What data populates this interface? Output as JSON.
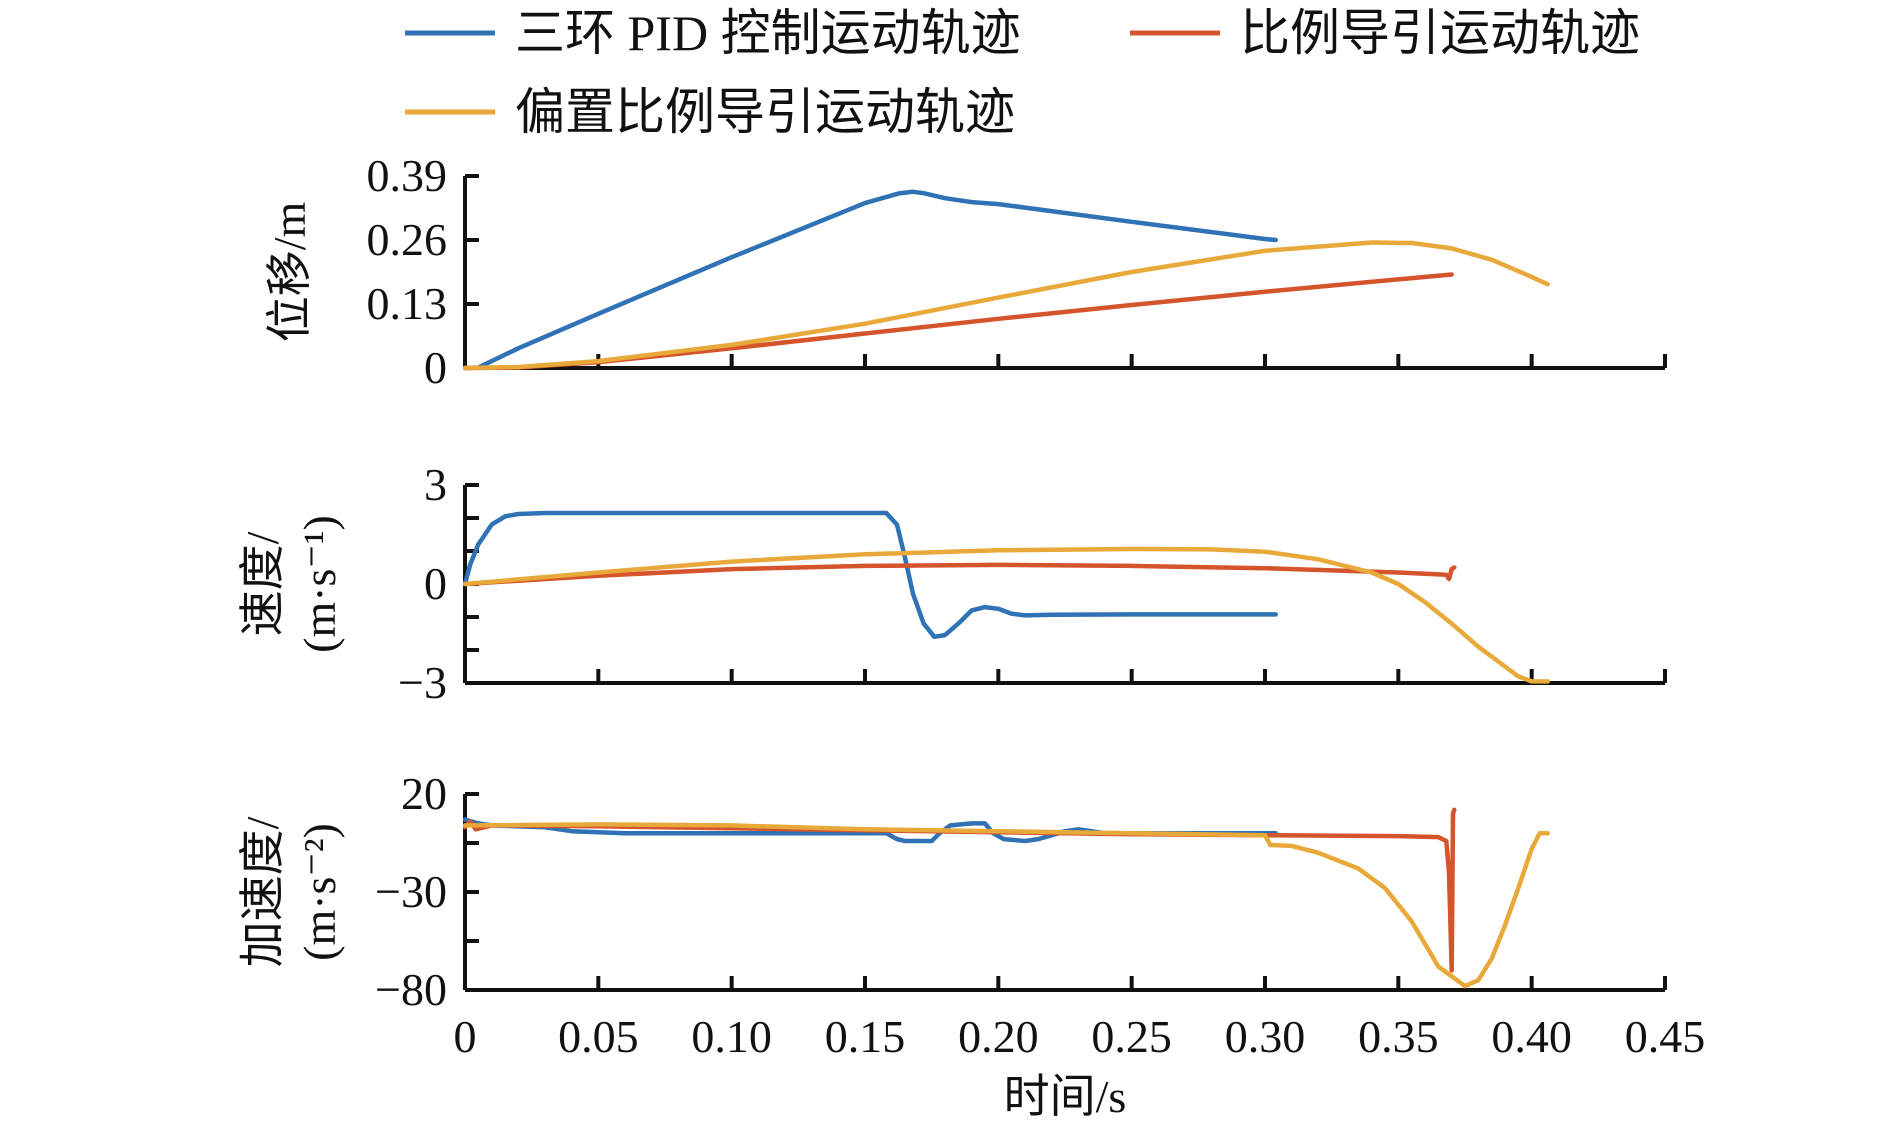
{
  "chart_data": {
    "type": "line",
    "legend": {
      "placement": "top",
      "entries": [
        {
          "name": "三环 PID 控制运动轨迹",
          "color": "#2f72b6"
        },
        {
          "name": "比例导引运动轨迹",
          "color": "#d5542b"
        },
        {
          "name": "偏置比例导引运动轨迹",
          "color": "#e8a93a"
        }
      ]
    },
    "xlabel": "时间/s",
    "xlim": [
      0,
      0.45
    ],
    "xticks": [
      0,
      0.05,
      0.1,
      0.15,
      0.2,
      0.25,
      0.3,
      0.35,
      0.4,
      0.45
    ],
    "xtick_labels": [
      "0",
      "0.05",
      "0.10",
      "0.15",
      "0.20",
      "0.25",
      "0.30",
      "0.35",
      "0.40",
      "0.45"
    ],
    "grid": false,
    "panels": [
      {
        "id": "displacement",
        "ylabel_lines": [
          "位移/m"
        ],
        "ylim": [
          0,
          0.39
        ],
        "yticks": [
          0,
          0.13,
          0.26,
          0.39
        ],
        "ytick_labels": [
          "0",
          "0.13",
          "0.26",
          "0.39"
        ],
        "series": [
          {
            "name": "三环 PID 控制运动轨迹",
            "points": [
              [
                0,
                0
              ],
              [
                0.005,
                0.001
              ],
              [
                0.02,
                0.04
              ],
              [
                0.05,
                0.11
              ],
              [
                0.1,
                0.225
              ],
              [
                0.15,
                0.335
              ],
              [
                0.163,
                0.355
              ],
              [
                0.168,
                0.358
              ],
              [
                0.172,
                0.355
              ],
              [
                0.18,
                0.345
              ],
              [
                0.19,
                0.337
              ],
              [
                0.2,
                0.333
              ],
              [
                0.25,
                0.297
              ],
              [
                0.3,
                0.262
              ],
              [
                0.304,
                0.26
              ]
            ]
          },
          {
            "name": "比例导引运动轨迹",
            "points": [
              [
                0,
                0
              ],
              [
                0.02,
                0.001
              ],
              [
                0.05,
                0.012
              ],
              [
                0.1,
                0.04
              ],
              [
                0.15,
                0.07
              ],
              [
                0.2,
                0.1
              ],
              [
                0.25,
                0.128
              ],
              [
                0.3,
                0.155
              ],
              [
                0.35,
                0.18
              ],
              [
                0.37,
                0.19
              ]
            ]
          },
          {
            "name": "偏置比例导引运动轨迹",
            "points": [
              [
                0,
                0
              ],
              [
                0.02,
                0.002
              ],
              [
                0.05,
                0.014
              ],
              [
                0.1,
                0.047
              ],
              [
                0.15,
                0.09
              ],
              [
                0.2,
                0.143
              ],
              [
                0.25,
                0.195
              ],
              [
                0.3,
                0.238
              ],
              [
                0.34,
                0.255
              ],
              [
                0.355,
                0.254
              ],
              [
                0.37,
                0.243
              ],
              [
                0.385,
                0.22
              ],
              [
                0.4,
                0.185
              ],
              [
                0.406,
                0.17
              ]
            ]
          }
        ]
      },
      {
        "id": "velocity",
        "ylabel_lines": [
          "速度/",
          "(m·s⁻¹)"
        ],
        "ylim": [
          -3,
          3
        ],
        "yticks": [
          -3,
          -2,
          -1,
          0,
          1,
          2,
          3
        ],
        "ytick_labels": [
          "−3",
          "",
          "",
          "0",
          "",
          "",
          "3"
        ],
        "series": [
          {
            "name": "三环 PID 控制运动轨迹",
            "points": [
              [
                0,
                0
              ],
              [
                0.002,
                0.6
              ],
              [
                0.005,
                1.2
              ],
              [
                0.01,
                1.8
              ],
              [
                0.015,
                2.05
              ],
              [
                0.02,
                2.12
              ],
              [
                0.03,
                2.15
              ],
              [
                0.1,
                2.15
              ],
              [
                0.158,
                2.15
              ],
              [
                0.162,
                1.8
              ],
              [
                0.165,
                0.8
              ],
              [
                0.168,
                -0.3
              ],
              [
                0.172,
                -1.2
              ],
              [
                0.176,
                -1.6
              ],
              [
                0.18,
                -1.55
              ],
              [
                0.185,
                -1.2
              ],
              [
                0.19,
                -0.8
              ],
              [
                0.195,
                -0.7
              ],
              [
                0.2,
                -0.75
              ],
              [
                0.205,
                -0.9
              ],
              [
                0.21,
                -0.95
              ],
              [
                0.22,
                -0.93
              ],
              [
                0.25,
                -0.92
              ],
              [
                0.304,
                -0.92
              ]
            ]
          },
          {
            "name": "比例导引运动轨迹",
            "points": [
              [
                0,
                0
              ],
              [
                0.05,
                0.25
              ],
              [
                0.1,
                0.45
              ],
              [
                0.15,
                0.55
              ],
              [
                0.2,
                0.58
              ],
              [
                0.25,
                0.55
              ],
              [
                0.3,
                0.48
              ],
              [
                0.35,
                0.35
              ],
              [
                0.368,
                0.28
              ],
              [
                0.369,
                0.15
              ],
              [
                0.37,
                0.45
              ],
              [
                0.371,
                0.5
              ]
            ]
          },
          {
            "name": "偏置比例导引运动轨迹",
            "points": [
              [
                0,
                0
              ],
              [
                0.05,
                0.35
              ],
              [
                0.1,
                0.68
              ],
              [
                0.15,
                0.9
              ],
              [
                0.2,
                1.02
              ],
              [
                0.25,
                1.06
              ],
              [
                0.28,
                1.05
              ],
              [
                0.3,
                0.98
              ],
              [
                0.32,
                0.75
              ],
              [
                0.34,
                0.35
              ],
              [
                0.35,
                0
              ],
              [
                0.36,
                -0.55
              ],
              [
                0.37,
                -1.2
              ],
              [
                0.38,
                -1.9
              ],
              [
                0.39,
                -2.5
              ],
              [
                0.395,
                -2.8
              ],
              [
                0.4,
                -2.95
              ],
              [
                0.406,
                -2.95
              ]
            ]
          }
        ]
      },
      {
        "id": "acceleration",
        "ylabel_lines": [
          "加速度/",
          "(m·s⁻²)"
        ],
        "ylim": [
          -80,
          20
        ],
        "yticks": [
          -80,
          -55,
          -30,
          -5,
          20
        ],
        "ytick_labels": [
          "−80",
          "",
          "−30",
          "",
          "20"
        ],
        "series": [
          {
            "name": "三环 PID 控制运动轨迹",
            "points": [
              [
                0,
                7
              ],
              [
                0.005,
                5
              ],
              [
                0.01,
                4
              ],
              [
                0.03,
                3
              ],
              [
                0.04,
                1
              ],
              [
                0.06,
                0
              ],
              [
                0.158,
                0
              ],
              [
                0.162,
                -3
              ],
              [
                0.165,
                -4
              ],
              [
                0.175,
                -4
              ],
              [
                0.178,
                0
              ],
              [
                0.182,
                4
              ],
              [
                0.19,
                5
              ],
              [
                0.195,
                5
              ],
              [
                0.198,
                0
              ],
              [
                0.202,
                -3
              ],
              [
                0.21,
                -4
              ],
              [
                0.215,
                -3
              ],
              [
                0.22,
                -1
              ],
              [
                0.225,
                1
              ],
              [
                0.23,
                2
              ],
              [
                0.235,
                1
              ],
              [
                0.24,
                0
              ],
              [
                0.304,
                0
              ]
            ]
          },
          {
            "name": "比例导引运动轨迹",
            "points": [
              [
                0,
                3
              ],
              [
                0.002,
                6
              ],
              [
                0.004,
                2
              ],
              [
                0.01,
                4
              ],
              [
                0.05,
                3.5
              ],
              [
                0.1,
                2.5
              ],
              [
                0.15,
                1.5
              ],
              [
                0.2,
                0.5
              ],
              [
                0.25,
                -0.5
              ],
              [
                0.3,
                -1
              ],
              [
                0.35,
                -1.5
              ],
              [
                0.365,
                -2
              ],
              [
                0.368,
                -4
              ],
              [
                0.369,
                -20
              ],
              [
                0.37,
                -70
              ],
              [
                0.3705,
                10
              ],
              [
                0.371,
                12
              ]
            ]
          },
          {
            "name": "偏置比例导引运动轨迹",
            "points": [
              [
                0,
                4
              ],
              [
                0.05,
                4.5
              ],
              [
                0.1,
                4
              ],
              [
                0.15,
                2
              ],
              [
                0.2,
                1
              ],
              [
                0.25,
                0
              ],
              [
                0.3,
                -1
              ],
              [
                0.302,
                -6
              ],
              [
                0.31,
                -6.5
              ],
              [
                0.32,
                -10
              ],
              [
                0.335,
                -18
              ],
              [
                0.345,
                -28
              ],
              [
                0.355,
                -45
              ],
              [
                0.365,
                -68
              ],
              [
                0.375,
                -78
              ],
              [
                0.38,
                -75
              ],
              [
                0.385,
                -64
              ],
              [
                0.39,
                -47
              ],
              [
                0.395,
                -28
              ],
              [
                0.4,
                -8
              ],
              [
                0.403,
                0
              ],
              [
                0.406,
                0
              ]
            ]
          }
        ]
      }
    ]
  }
}
